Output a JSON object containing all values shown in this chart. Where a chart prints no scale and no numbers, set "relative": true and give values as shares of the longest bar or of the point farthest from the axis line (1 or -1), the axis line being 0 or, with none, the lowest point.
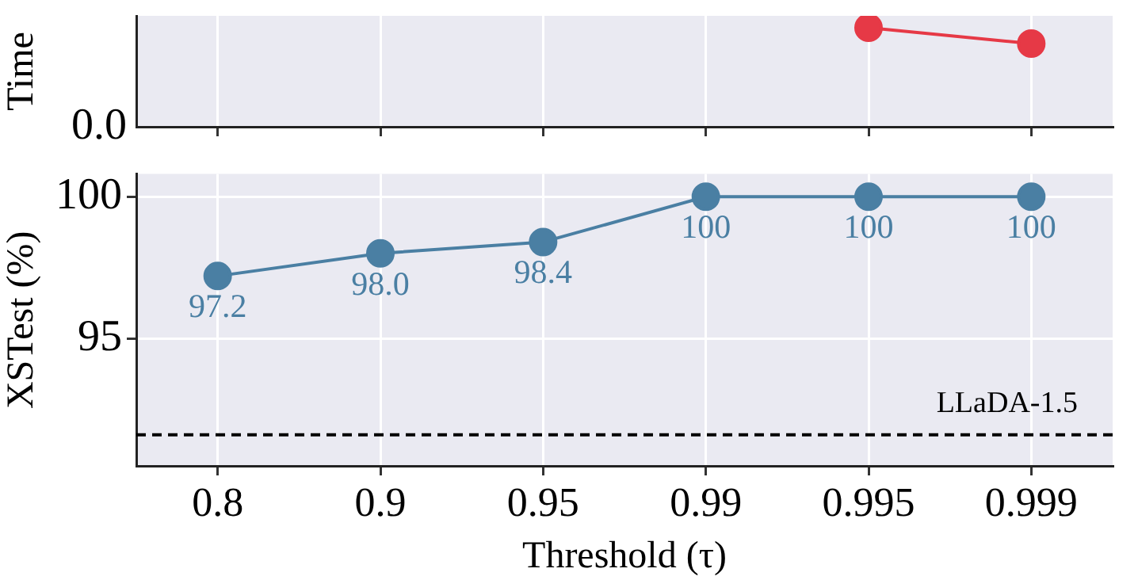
{
  "chart_data": [
    {
      "type": "line",
      "ylabel": "Time",
      "categories": [
        "0.8",
        "0.9",
        "0.95",
        "0.99",
        "0.995",
        "0.999"
      ],
      "relative": true,
      "tick_labels": false,
      "grid": "x",
      "marker": "circle",
      "legend": false,
      "annotations": [
        "0.0"
      ],
      "series": [
        {
          "color": "#e63946",
          "values": [
            null,
            null,
            null,
            null,
            1,
            0.84
          ]
        }
      ]
    },
    {
      "type": "line",
      "xlabel": "Threshold (τ)",
      "ylabel": "XSTest (%)",
      "categories": [
        "0.8",
        "0.9",
        "0.95",
        "0.99",
        "0.995",
        "0.999"
      ],
      "ylim": [
        90.5,
        100.8
      ],
      "yticks": [
        95,
        100
      ],
      "grid": true,
      "marker": "circle",
      "legend": false,
      "value_labels": [
        "97.2",
        "98.0",
        "98.4",
        "100",
        "100",
        "100"
      ],
      "series": [
        {
          "color": "#4a7fa3",
          "values": [
            97.2,
            98.0,
            98.4,
            100,
            100,
            100
          ]
        }
      ],
      "ref_lines": [
        {
          "axis": "y",
          "value": 91.6,
          "label": "LLaDA-1.5",
          "color": "#000000",
          "line_style": "dashed"
        }
      ]
    }
  ]
}
